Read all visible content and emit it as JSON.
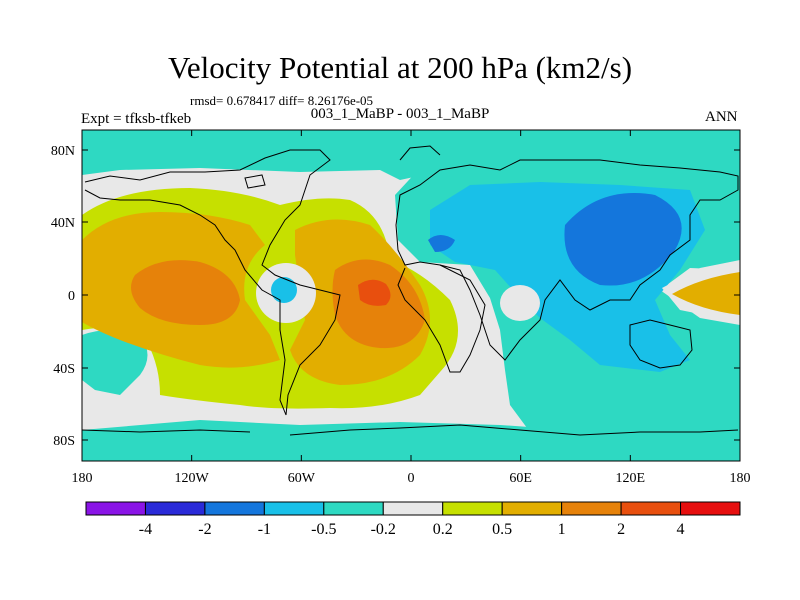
{
  "title": "Velocity Potential at 200 hPa (km2/s)",
  "stats_line": "rmsd= 0.678417 diff= 8.26176e-05",
  "experiment": "Expt = tfksb-tfkeb",
  "case_label": "003_1_MaBP - 003_1_MaBP",
  "season": "ANN",
  "lat_ticks": [
    "80N",
    "40N",
    "0",
    "40S",
    "80S"
  ],
  "lon_ticks": [
    "180",
    "120W",
    "60W",
    "0",
    "60E",
    "120E",
    "180"
  ],
  "colorbar": {
    "labels": [
      "-4",
      "-2",
      "-1",
      "-0.5",
      "-0.2",
      "0.2",
      "0.5",
      "1",
      "2",
      "4"
    ],
    "colors": [
      "#8a14e6",
      "#2a2ad8",
      "#1476dc",
      "#19c0e8",
      "#2ed9c2",
      "#e8e8e8",
      "#c6e000",
      "#e2ae00",
      "#e6820a",
      "#e84f0e",
      "#e60f0f"
    ]
  }
}
